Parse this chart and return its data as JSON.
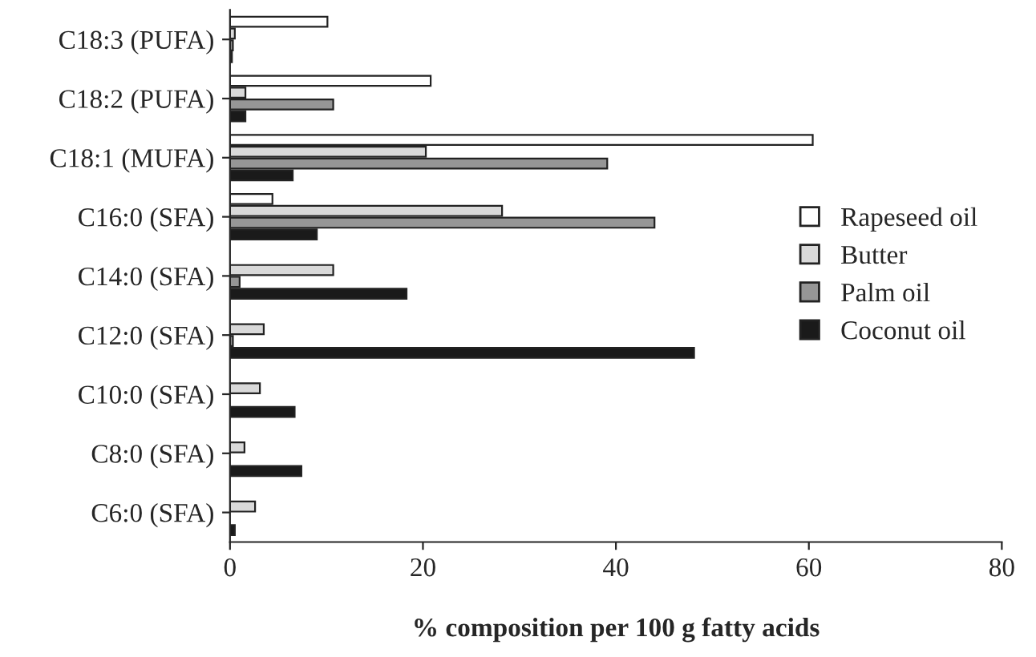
{
  "chart_data": {
    "type": "bar",
    "orientation": "horizontal",
    "xlabel": "% composition per 100 g fatty acids",
    "categories": [
      "C18:3 (PUFA)",
      "C18:2 (PUFA)",
      "C18:1 (MUFA)",
      "C16:0 (SFA)",
      "C14:0 (SFA)",
      "C12:0 (SFA)",
      "C10:0 (SFA)",
      "C8:0 (SFA)",
      "C6:0 (SFA)"
    ],
    "series": [
      {
        "name": "Rapeseed oil",
        "color": "#ffffff",
        "values": [
          10.1,
          20.8,
          60.4,
          4.4,
          null,
          null,
          null,
          null,
          null
        ]
      },
      {
        "name": "Butter",
        "color": "#d9d9d9",
        "values": [
          0.5,
          1.6,
          20.3,
          28.2,
          10.7,
          3.5,
          3.1,
          1.5,
          2.6
        ]
      },
      {
        "name": "Palm oil",
        "color": "#969696",
        "values": [
          0.3,
          10.7,
          39.1,
          44.0,
          1.0,
          0.3,
          null,
          null,
          null
        ]
      },
      {
        "name": "Coconut oil",
        "color": "#1a1a1a",
        "values": [
          0.2,
          1.6,
          6.5,
          9.0,
          18.3,
          48.1,
          6.7,
          7.4,
          0.5
        ]
      }
    ],
    "xlim": [
      0,
      80
    ],
    "xticks": [
      0,
      20,
      40,
      60,
      80
    ],
    "grid": false,
    "legend": "right"
  }
}
